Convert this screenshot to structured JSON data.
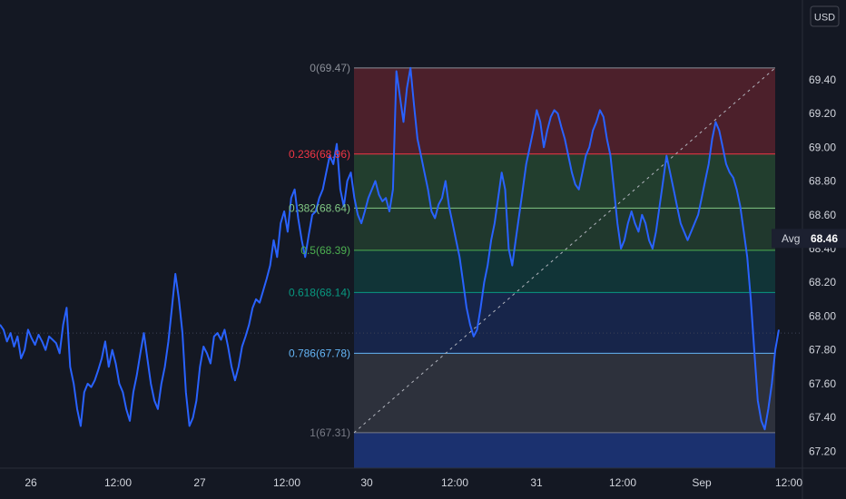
{
  "chart_data": {
    "type": "line",
    "currency_label": "USD",
    "ylim": [
      67.1,
      69.7
    ],
    "y_ticks": [
      {
        "value": 69.4,
        "label": "69.40"
      },
      {
        "value": 69.2,
        "label": "69.20"
      },
      {
        "value": 69.0,
        "label": "69.00"
      },
      {
        "value": 68.8,
        "label": "68.80"
      },
      {
        "value": 68.6,
        "label": "68.60"
      },
      {
        "value": 68.4,
        "label": "68.40"
      },
      {
        "value": 68.2,
        "label": "68.20"
      },
      {
        "value": 68.0,
        "label": "68.00"
      },
      {
        "value": 67.8,
        "label": "67.80"
      },
      {
        "value": 67.6,
        "label": "67.60"
      },
      {
        "value": 67.4,
        "label": "67.40"
      },
      {
        "value": 67.2,
        "label": "67.20"
      }
    ],
    "x_ticks": [
      "26",
      "12:00",
      "27",
      "12:00",
      "30",
      "12:00",
      "31",
      "12:00",
      "Sep",
      "12:00"
    ],
    "avg": {
      "label": "Avg",
      "value": "68.46"
    },
    "last_value": 67.9,
    "fibonacci": {
      "levels": [
        {
          "label": "0(69.47)",
          "ratio": 0,
          "price": 69.47,
          "color": "#8b8f98"
        },
        {
          "label": "0.236(68.96)",
          "ratio": 0.236,
          "price": 68.96,
          "color": "#f23645"
        },
        {
          "label": "0.382(68.64)",
          "ratio": 0.382,
          "price": 68.64,
          "color": "#81c784"
        },
        {
          "label": "0.5(68.39)",
          "ratio": 0.5,
          "price": 68.39,
          "color": "#4caf50"
        },
        {
          "label": "0.618(68.14)",
          "ratio": 0.618,
          "price": 68.14,
          "color": "#089981"
        },
        {
          "label": "0.786(67.78)",
          "ratio": 0.786,
          "price": 67.78,
          "color": "#64b5f6"
        },
        {
          "label": "1(67.31)",
          "ratio": 1,
          "price": 67.31,
          "color": "#787b86"
        }
      ]
    },
    "series": [
      {
        "values": [
          67.95,
          67.92,
          67.85,
          67.9,
          67.82,
          67.88,
          67.75,
          67.8,
          67.92,
          67.87,
          67.83,
          67.89,
          67.85,
          67.8,
          67.88,
          67.86,
          67.84,
          67.78,
          67.95,
          68.05,
          67.7,
          67.6,
          67.45,
          67.35,
          67.55,
          67.6,
          67.58,
          67.62,
          67.68,
          67.75,
          67.85,
          67.7,
          67.8,
          67.72,
          67.6,
          67.55,
          67.45,
          67.38,
          67.55,
          67.65,
          67.78,
          67.9,
          67.75,
          67.6,
          67.5,
          67.45,
          67.6,
          67.7,
          67.85,
          68.05,
          68.25,
          68.1,
          67.9,
          67.55,
          67.35,
          67.4,
          67.5,
          67.7,
          67.82,
          67.78,
          67.72,
          67.88,
          67.9,
          67.86,
          67.92,
          67.82,
          67.7,
          67.62,
          67.7,
          67.82,
          67.88,
          67.95,
          68.05,
          68.1,
          68.08,
          68.15,
          68.22,
          68.3,
          68.45,
          68.35,
          68.55,
          68.62,
          68.5,
          68.7,
          68.75,
          68.58,
          68.45,
          68.35,
          68.48,
          68.6,
          68.62,
          68.7,
          68.75,
          68.85,
          68.95,
          68.9,
          69.02,
          68.75,
          68.65,
          68.8,
          68.85,
          68.7,
          68.6,
          68.55,
          68.62,
          68.7,
          68.75,
          68.8,
          68.72,
          68.68,
          68.7,
          68.62,
          68.75,
          69.45,
          69.3,
          69.15,
          69.35,
          69.47,
          69.25,
          69.05,
          68.95,
          68.85,
          68.75,
          68.62,
          68.58,
          68.66,
          68.7,
          68.8,
          68.65,
          68.55,
          68.45,
          68.35,
          68.2,
          68.05,
          67.95,
          67.88,
          67.92,
          68.05,
          68.2,
          68.3,
          68.45,
          68.55,
          68.7,
          68.85,
          68.75,
          68.4,
          68.3,
          68.45,
          68.6,
          68.75,
          68.9,
          69.0,
          69.1,
          69.22,
          69.15,
          69.0,
          69.1,
          69.18,
          69.22,
          69.2,
          69.12,
          69.05,
          68.95,
          68.85,
          68.78,
          68.75,
          68.85,
          68.95,
          69.0,
          69.1,
          69.15,
          69.22,
          69.18,
          69.05,
          68.95,
          68.75,
          68.55,
          68.4,
          68.45,
          68.55,
          68.62,
          68.55,
          68.5,
          68.6,
          68.55,
          68.45,
          68.4,
          68.5,
          68.65,
          68.8,
          68.95,
          68.85,
          68.75,
          68.65,
          68.55,
          68.5,
          68.45,
          68.5,
          68.55,
          68.6,
          68.7,
          68.8,
          68.9,
          69.05,
          69.15,
          69.1,
          69.0,
          68.9,
          68.85,
          68.82,
          68.75,
          68.65,
          68.5,
          68.35,
          68.1,
          67.8,
          67.5,
          67.38,
          67.33,
          67.45,
          67.6,
          67.8,
          67.92
        ]
      }
    ]
  }
}
